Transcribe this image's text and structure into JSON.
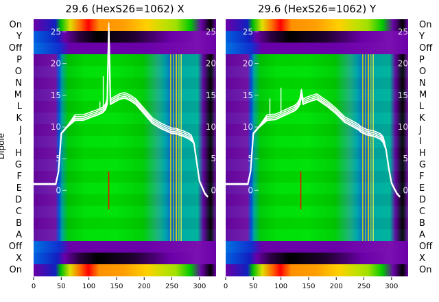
{
  "figure": {
    "ylabel": "Dipole",
    "row_labels": [
      "On",
      "Y",
      "Off",
      "P",
      "O",
      "N",
      "M",
      "L",
      "K",
      "J",
      "I",
      "H",
      "G",
      "F",
      "E",
      "D",
      "C",
      "B",
      "A",
      "Off",
      "X",
      "On"
    ],
    "mirror_row_labels": [
      "On",
      "Y",
      "Off",
      "P",
      "O",
      "N",
      "M",
      "L",
      "K",
      "J",
      "I",
      "H",
      "G",
      "F",
      "E",
      "D",
      "C",
      "B",
      "A",
      "Off",
      "X",
      "On"
    ]
  },
  "chart_data": [
    {
      "type": "heatmap",
      "title": "29.6 (HexS26=1062) X",
      "xlabel": "",
      "ylabel": "Dipole",
      "x_ticks": [
        0,
        50,
        100,
        150,
        200,
        250,
        300
      ],
      "xlim": [
        0,
        330
      ],
      "y_ticks": [
        0,
        5,
        10,
        15,
        20,
        25
      ],
      "ylim": [
        -13.5,
        27
      ],
      "overlay": {
        "type": "line",
        "color": "#ffffff",
        "x": [
          0,
          20,
          40,
          45,
          50,
          60,
          75,
          90,
          105,
          115,
          125,
          130,
          133,
          136,
          139,
          145,
          155,
          165,
          175,
          185,
          200,
          215,
          230,
          240,
          245,
          250,
          255,
          260,
          265,
          270,
          275,
          280,
          285,
          290,
          295,
          300,
          305,
          310,
          315
        ],
        "y": [
          1,
          1,
          1,
          3,
          9,
          10,
          11.5,
          11.5,
          12,
          12.3,
          12.7,
          13.2,
          14,
          26,
          14,
          14.3,
          14.8,
          15,
          14.6,
          14,
          12.5,
          11,
          10.2,
          9.8,
          9.6,
          9.4,
          9.4,
          9.3,
          9.1,
          9,
          8.8,
          8.6,
          8.3,
          7.5,
          4.5,
          1.5,
          0.5,
          -0.5,
          -1
        ],
        "spikes": [
          {
            "x": 120,
            "y": 14
          },
          {
            "x": 126,
            "y": 18
          },
          {
            "x": 260,
            "y": 9.7
          }
        ]
      }
    },
    {
      "type": "heatmap",
      "title": "29.6 (HexS26=1062) Y",
      "xlabel": "",
      "ylabel": "",
      "x_ticks": [
        0,
        50,
        100,
        150,
        200,
        250,
        300
      ],
      "xlim": [
        0,
        330
      ],
      "y_ticks": [
        0,
        5,
        10,
        15,
        20,
        25
      ],
      "ylim": [
        -13.5,
        27
      ],
      "overlay": {
        "type": "line",
        "color": "#ffffff",
        "x": [
          0,
          20,
          40,
          45,
          50,
          60,
          75,
          90,
          105,
          115,
          125,
          130,
          134,
          137,
          140,
          147,
          157,
          165,
          175,
          185,
          200,
          215,
          230,
          240,
          245,
          250,
          255,
          260,
          265,
          270,
          275,
          280,
          285,
          290,
          295,
          300,
          305,
          310,
          315
        ],
        "y": [
          1,
          1,
          1,
          3,
          9,
          10,
          11.5,
          11.6,
          12.2,
          12.6,
          13,
          13.4,
          14,
          15.5,
          14,
          14.3,
          14.6,
          14.8,
          14.2,
          13.6,
          12.5,
          11.2,
          10.5,
          10,
          9.6,
          9.4,
          9.2,
          9.1,
          9,
          8.9,
          8.7,
          8.5,
          8,
          6.5,
          3.5,
          1.2,
          0.3,
          -0.5,
          -1
        ],
        "spikes": [
          {
            "x": 80,
            "y": 14.5
          },
          {
            "x": 100,
            "y": 16.2
          },
          {
            "x": 258,
            "y": 9.2
          }
        ]
      }
    }
  ]
}
